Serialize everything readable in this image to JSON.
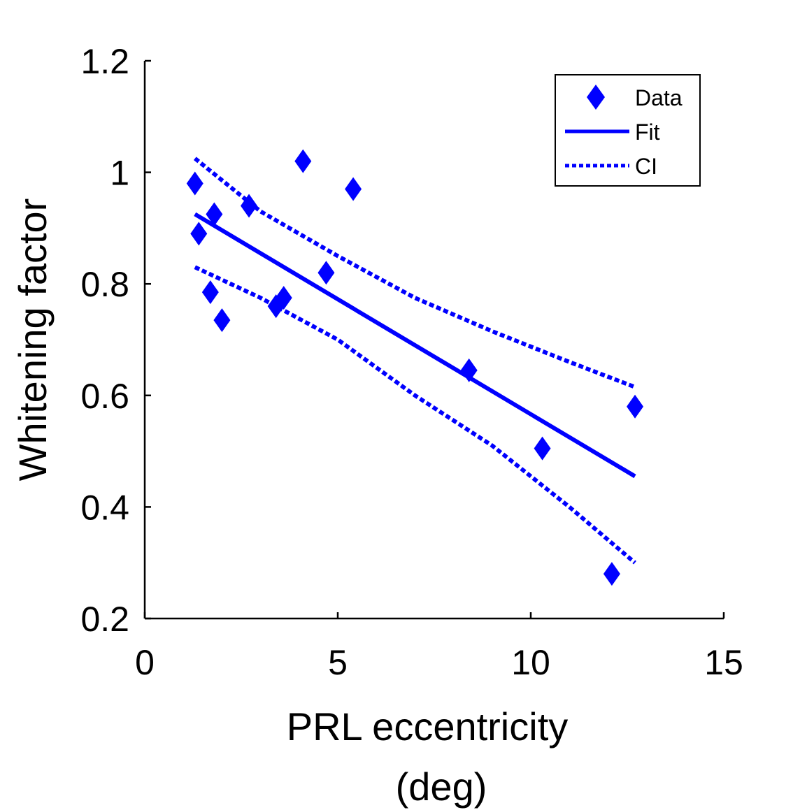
{
  "chart_data": {
    "type": "scatter",
    "xlabel_lines": [
      "PRL eccentricity",
      "(deg)"
    ],
    "ylabel": "Whitening factor",
    "xlim": [
      0,
      15
    ],
    "ylim": [
      0.2,
      1.2
    ],
    "xticks": [
      0,
      5,
      10,
      15
    ],
    "xtick_labels": [
      "0",
      "5",
      "10",
      "15"
    ],
    "yticks": [
      0.2,
      0.4,
      0.6,
      0.8,
      1.0,
      1.2
    ],
    "ytick_labels": [
      "0.2",
      "0.4",
      "0.6",
      "0.8",
      "1",
      "1.2"
    ],
    "grid": false,
    "legend_position": "top-right",
    "color": "#0000ff",
    "series": [
      {
        "name": "Data",
        "style": "diamond-markers",
        "points": [
          {
            "x": 1.3,
            "y": 0.98
          },
          {
            "x": 1.4,
            "y": 0.89
          },
          {
            "x": 1.7,
            "y": 0.785
          },
          {
            "x": 1.8,
            "y": 0.925
          },
          {
            "x": 2.0,
            "y": 0.735
          },
          {
            "x": 2.7,
            "y": 0.94
          },
          {
            "x": 3.4,
            "y": 0.76
          },
          {
            "x": 3.6,
            "y": 0.775
          },
          {
            "x": 4.1,
            "y": 1.02
          },
          {
            "x": 4.7,
            "y": 0.82
          },
          {
            "x": 5.4,
            "y": 0.97
          },
          {
            "x": 8.4,
            "y": 0.645
          },
          {
            "x": 10.3,
            "y": 0.505
          },
          {
            "x": 12.1,
            "y": 0.28
          },
          {
            "x": 12.7,
            "y": 0.58
          }
        ]
      },
      {
        "name": "Fit",
        "style": "solid-line",
        "points": [
          {
            "x": 1.3,
            "y": 0.925
          },
          {
            "x": 12.7,
            "y": 0.455
          }
        ]
      },
      {
        "name": "CI",
        "style": "dotted-line",
        "bands": [
          [
            {
              "x": 1.3,
              "y": 1.025
            },
            {
              "x": 3.0,
              "y": 0.93
            },
            {
              "x": 5.0,
              "y": 0.85
            },
            {
              "x": 7.0,
              "y": 0.775
            },
            {
              "x": 9.0,
              "y": 0.715
            },
            {
              "x": 11.0,
              "y": 0.66
            },
            {
              "x": 12.7,
              "y": 0.615
            }
          ],
          [
            {
              "x": 1.3,
              "y": 0.83
            },
            {
              "x": 3.0,
              "y": 0.775
            },
            {
              "x": 5.0,
              "y": 0.7
            },
            {
              "x": 7.0,
              "y": 0.6
            },
            {
              "x": 9.0,
              "y": 0.51
            },
            {
              "x": 11.0,
              "y": 0.4
            },
            {
              "x": 12.7,
              "y": 0.3
            }
          ]
        ]
      }
    ]
  }
}
